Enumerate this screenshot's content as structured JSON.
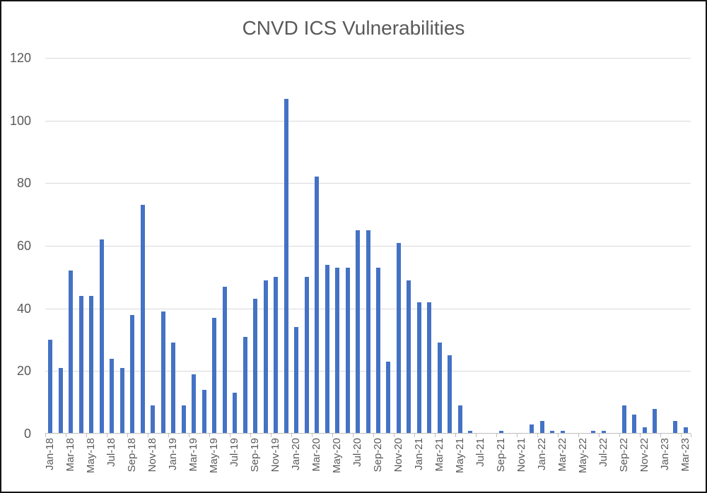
{
  "page": {
    "background_color": "#ffffff",
    "border_color": "#141414"
  },
  "chart_data": {
    "type": "bar",
    "title": "CNVD ICS Vulnerabilities",
    "xlabel": "",
    "ylabel": "",
    "ylim": [
      0,
      120
    ],
    "yticks": [
      0,
      20,
      40,
      60,
      80,
      100,
      120
    ],
    "grid": true,
    "legend_position": "none",
    "x_label_interval": 2,
    "bar_color": "#4472C4",
    "gridline_color": "#D9D9D9",
    "axis_line_color": "#BFBFBF",
    "text_color": "#595959",
    "categories": [
      "Jan-18",
      "Feb-18",
      "Mar-18",
      "Apr-18",
      "May-18",
      "Jun-18",
      "Jul-18",
      "Aug-18",
      "Sep-18",
      "Oct-18",
      "Nov-18",
      "Dec-18",
      "Jan-19",
      "Feb-19",
      "Mar-19",
      "Apr-19",
      "May-19",
      "Jun-19",
      "Jul-19",
      "Aug-19",
      "Sep-19",
      "Oct-19",
      "Nov-19",
      "Dec-19",
      "Jan-20",
      "Feb-20",
      "Mar-20",
      "Apr-20",
      "May-20",
      "Jun-20",
      "Jul-20",
      "Aug-20",
      "Sep-20",
      "Oct-20",
      "Nov-20",
      "Dec-20",
      "Jan-21",
      "Feb-21",
      "Mar-21",
      "Apr-21",
      "May-21",
      "Jun-21",
      "Jul-21",
      "Aug-21",
      "Sep-21",
      "Oct-21",
      "Nov-21",
      "Dec-21",
      "Jan-22",
      "Feb-22",
      "Mar-22",
      "Apr-22",
      "May-22",
      "Jun-22",
      "Jul-22",
      "Aug-22",
      "Sep-22",
      "Oct-22",
      "Nov-22",
      "Dec-22",
      "Jan-23",
      "Feb-23",
      "Mar-23"
    ],
    "values": [
      30,
      21,
      52,
      44,
      44,
      62,
      24,
      21,
      38,
      73,
      9,
      39,
      29,
      9,
      19,
      14,
      37,
      47,
      13,
      31,
      43,
      49,
      50,
      107,
      34,
      50,
      82,
      54,
      53,
      53,
      65,
      65,
      53,
      23,
      61,
      49,
      42,
      42,
      29,
      25,
      9,
      1,
      0,
      0,
      1,
      0,
      0,
      3,
      4,
      1,
      1,
      0,
      0,
      1,
      1,
      0,
      9,
      6,
      2,
      8,
      0,
      4,
      2
    ]
  }
}
